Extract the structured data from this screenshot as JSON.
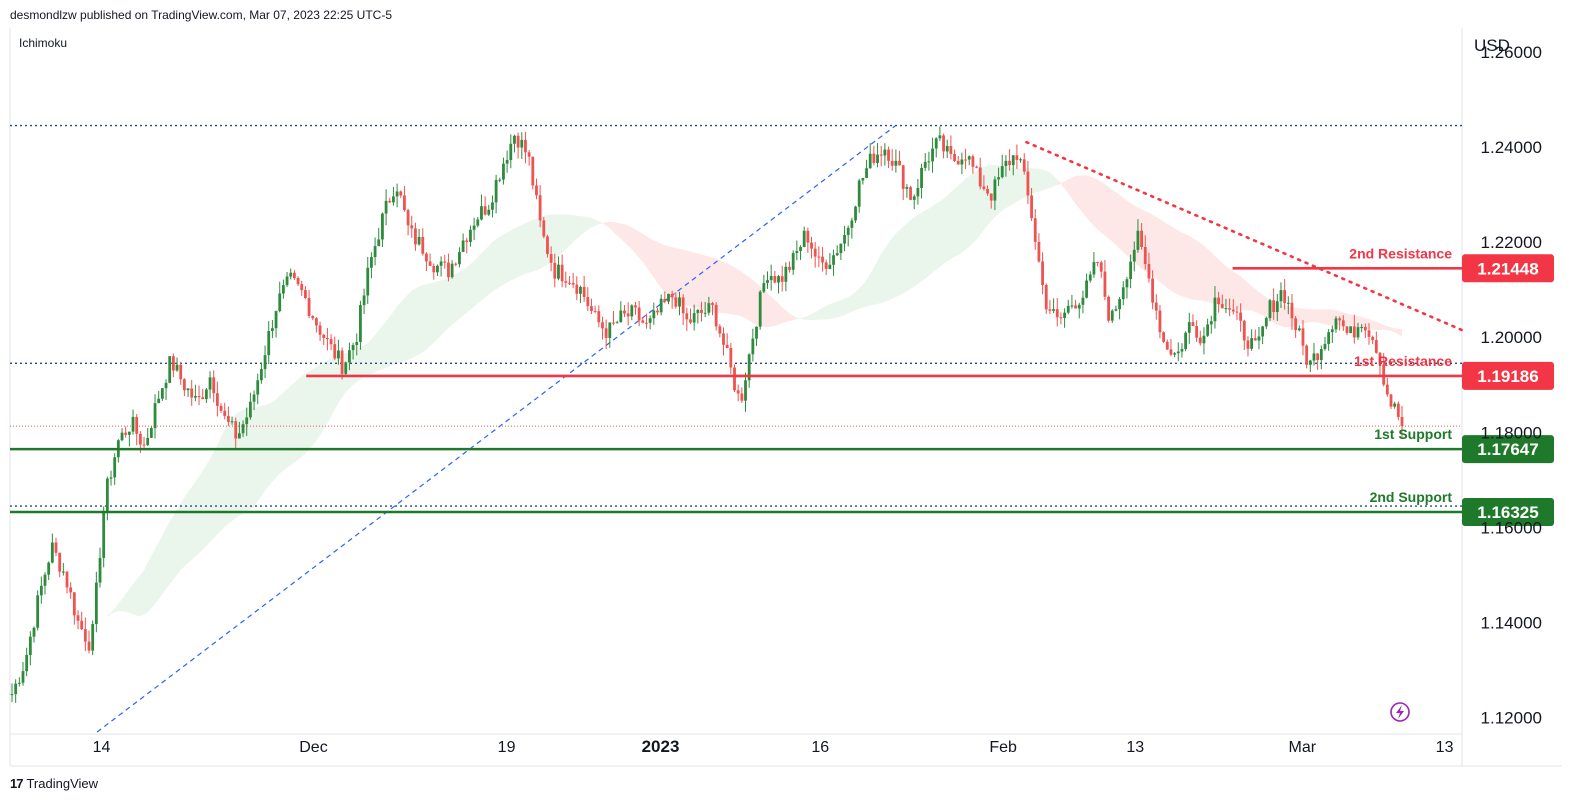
{
  "header": {
    "published_by": "desmondlzw published on TradingView.com, Mar 07, 2023 22:25 UTC-5",
    "indicator": "Ichimoku",
    "currency": "USD",
    "footer_brand": "TradingView",
    "footer_logo": "17"
  },
  "colors": {
    "up": "#26a69a",
    "down": "#ef5350",
    "up_candle": "#2e8b3e",
    "down_candle": "#ef5350",
    "resistance": "#f23645",
    "support": "#1e7a2a",
    "trend": "#2962ff",
    "cloud_bull": "#e8f5e9",
    "cloud_bear": "#fde4e4",
    "grid_dot": "#2a4a7f"
  },
  "chart_data": {
    "type": "candlestick",
    "title": "",
    "ylabel": "USD",
    "ylim": [
      1.117,
      1.265
    ],
    "y_ticks": [
      "1.26000",
      "1.24000",
      "1.22000",
      "1.20000",
      "1.18000",
      "1.16000",
      "1.14000",
      "1.12000"
    ],
    "y_tick_values": [
      1.26,
      1.24,
      1.22,
      1.2,
      1.18,
      1.16,
      1.14,
      1.12
    ],
    "x_ticks": [
      {
        "label": "14",
        "bold": false
      },
      {
        "label": "Dec",
        "bold": false
      },
      {
        "label": "19",
        "bold": false
      },
      {
        "label": "2023",
        "bold": true
      },
      {
        "label": "16",
        "bold": false
      },
      {
        "label": "Feb",
        "bold": false
      },
      {
        "label": "13",
        "bold": false
      },
      {
        "label": "Mar",
        "bold": false
      },
      {
        "label": "13",
        "bold": false
      }
    ],
    "price_path": [
      1.125,
      1.132,
      1.145,
      1.156,
      1.15,
      1.14,
      1.135,
      1.166,
      1.178,
      1.182,
      1.177,
      1.187,
      1.195,
      1.19,
      1.186,
      1.192,
      1.183,
      1.179,
      1.185,
      1.196,
      1.207,
      1.212,
      1.209,
      1.203,
      1.198,
      1.194,
      1.2,
      1.215,
      1.225,
      1.233,
      1.222,
      1.219,
      1.215,
      1.214,
      1.22,
      1.225,
      1.228,
      1.236,
      1.243,
      1.238,
      1.222,
      1.214,
      1.213,
      1.21,
      1.204,
      1.201,
      1.204,
      1.205,
      1.202,
      1.206,
      1.209,
      1.203,
      1.205,
      1.206,
      1.196,
      1.186,
      1.201,
      1.214,
      1.212,
      1.216,
      1.222,
      1.215,
      1.217,
      1.222,
      1.232,
      1.238,
      1.24,
      1.235,
      1.229,
      1.237,
      1.241,
      1.237,
      1.239,
      1.233,
      1.23,
      1.236,
      1.239,
      1.226,
      1.208,
      1.203,
      1.207,
      1.209,
      1.216,
      1.203,
      1.212,
      1.221,
      1.211,
      1.199,
      1.196,
      1.203,
      1.2,
      1.209,
      1.206,
      1.201,
      1.197,
      1.206,
      1.21,
      1.202,
      1.194,
      1.199,
      1.205,
      1.2,
      1.204,
      1.199,
      1.187,
      1.182
    ],
    "levels": [
      {
        "name": "2nd Resistance",
        "value": "1.21448",
        "kind": "resistance"
      },
      {
        "name": "1st Resistance",
        "value": "1.19186",
        "kind": "resistance"
      },
      {
        "name": "1st Support",
        "value": "1.17647",
        "kind": "support"
      },
      {
        "name": "2nd Support",
        "value": "1.16325",
        "kind": "support"
      }
    ],
    "dotted_levels": [
      1.2445,
      1.1945,
      1.1645
    ],
    "last_price": 1.1813,
    "ascending_trendline": {
      "start": [
        0.06,
        1.117
      ],
      "end": [
        0.61,
        1.2445
      ]
    },
    "descending_trendline": {
      "start": [
        0.7,
        1.241
      ],
      "end": [
        1.0,
        1.2015
      ]
    }
  }
}
